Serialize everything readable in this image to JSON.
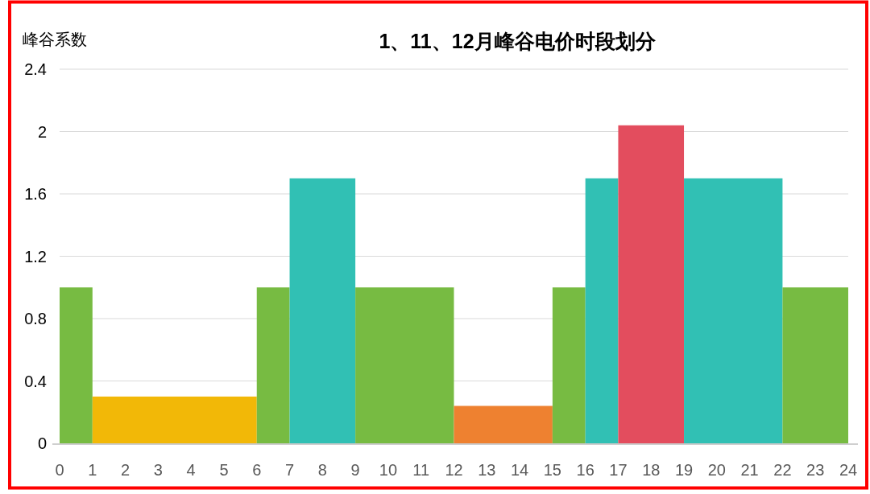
{
  "chart_data": {
    "type": "histogram",
    "title": "1、11、12月峰谷电价时段划分",
    "ylabel": "峰谷系数",
    "bins": [
      0,
      1,
      6,
      7,
      9,
      12,
      15,
      16,
      17,
      19,
      22,
      24
    ],
    "values": [
      1,
      0.3,
      1,
      1.7,
      1,
      0.24,
      1,
      1.7,
      2.04,
      1.7,
      1
    ],
    "colors": [
      "#77bb42",
      "#f2b807",
      "#77bb42",
      "#31c0b4",
      "#77bb42",
      "#ee8130",
      "#77bb42",
      "#31c0b4",
      "#e34d5e",
      "#31c0b4",
      "#77bb42"
    ],
    "xlim": [
      0,
      24
    ],
    "xticks": [
      0,
      1,
      2,
      3,
      4,
      5,
      6,
      7,
      8,
      9,
      10,
      11,
      12,
      13,
      14,
      15,
      16,
      17,
      18,
      19,
      20,
      21,
      22,
      23,
      24
    ],
    "ylim": [
      0,
      2.4
    ],
    "yticks": [
      0,
      0.4,
      0.8,
      1.2,
      1.6,
      2,
      2.4
    ],
    "grid": "y"
  }
}
